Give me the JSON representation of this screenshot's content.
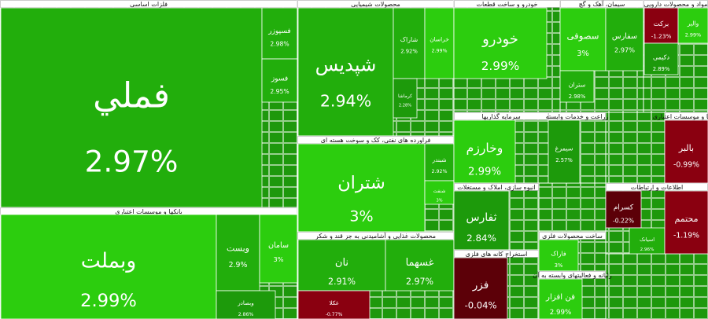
{
  "chart_data": {
    "type": "treemap",
    "sectors": [
      {
        "title": "فلزات اساسی",
        "names": [
          "فملي",
          "فسپوزر",
          "فسوز"
        ],
        "values": [
          2.97,
          2.98,
          2.95
        ],
        "value_labels": [
          "2.97%",
          "2.98%",
          "2.95%"
        ]
      },
      {
        "title": "بانکها و موسسات اعتباری",
        "names": [
          "وبملت",
          "وبست",
          "سامان",
          "وبصادر"
        ],
        "values": [
          2.99,
          2.9,
          3,
          2.86
        ],
        "value_labels": [
          "2.99%",
          "2.9%",
          "3%",
          "2.86%"
        ]
      },
      {
        "title": "محصولات شیمیایی",
        "names": [
          "شپدیس",
          "شاراک",
          "خراسان",
          "کرماشا"
        ],
        "values": [
          2.94,
          2.92,
          2.99,
          2.28
        ],
        "value_labels": [
          "2.94%",
          "2.92%",
          "2.99%",
          "2.28%"
        ]
      },
      {
        "title": "فراورده های نفتی، کک و سوخت هسته ای",
        "names": [
          "شتران",
          "شبندر",
          "شنفت"
        ],
        "values": [
          3,
          2.92,
          3
        ],
        "value_labels": [
          "3%",
          "2.92%",
          "3%"
        ]
      },
      {
        "title": "محصولات غذایی و آشامیدنی به جز قند و شکر",
        "names": [
          "نان",
          "غسهما",
          "غکلا"
        ],
        "values": [
          2.91,
          2.97,
          -0.77
        ],
        "value_labels": [
          "2.91%",
          "2.97%",
          "-0.77%"
        ]
      },
      {
        "title": "خودرو و ساخت قطعات",
        "names": [
          "خودرو"
        ],
        "values": [
          2.99
        ],
        "value_labels": [
          "2.99%"
        ]
      },
      {
        "title": "سیمان، آهک و گچ",
        "names": [
          "سصوفی",
          "سفارس",
          "ستران"
        ],
        "values": [
          3,
          2.97,
          2.98
        ],
        "value_labels": [
          "3%",
          "2.97%",
          "2.98%"
        ]
      },
      {
        "title": "مواد و محصولات دارویی",
        "names": [
          "برکت",
          "والبر",
          "دکیمی"
        ],
        "values": [
          -1.23,
          2.99,
          2.89
        ],
        "value_labels": [
          "-1.23%",
          "2.99%",
          "2.89%"
        ]
      },
      {
        "title": "سرمایه گذاریها",
        "names": [
          "وخارزم"
        ],
        "values": [
          2.99
        ],
        "value_labels": [
          "2.99%"
        ]
      },
      {
        "title": "زراعت و خدمات وابسته",
        "names": [
          "سیمرغ"
        ],
        "values": [
          2.57
        ],
        "value_labels": [
          "2.57%"
        ]
      },
      {
        "title": "انبوه سازی، املاک و مستغلات",
        "names": [
          "ثفارس"
        ],
        "values": [
          2.84
        ],
        "value_labels": [
          "2.84%"
        ]
      },
      {
        "title": "استخراج کانه های فلزی",
        "names": [
          "فزر"
        ],
        "values": [
          -0.04
        ],
        "value_labels": [
          "-0.04%"
        ]
      },
      {
        "title": "ساخت محصولات فلزی",
        "names": [
          "فاراک"
        ],
        "values": [
          3
        ],
        "value_labels": [
          "3%"
        ]
      },
      {
        "title": "رایانه و فعالیتهای وابسته به آن",
        "names": [
          "فن افزار"
        ],
        "values": [
          2.99
        ],
        "value_labels": [
          "2.99%"
        ]
      },
      {
        "title": "اطلاعات و ارتباطات",
        "names": [
          "کسرام",
          "اسیاتک",
          "محتمم"
        ],
        "values": [
          -0.22,
          2.96,
          -1.19
        ],
        "value_labels": [
          "-0.22%",
          "2.96%",
          "-1.19%"
        ]
      },
      {
        "title": "بانکها و موسسات اعتباری",
        "names": [
          "بالبر"
        ],
        "values": [
          -0.99
        ],
        "value_labels": [
          "-0.99%"
        ]
      }
    ]
  }
}
